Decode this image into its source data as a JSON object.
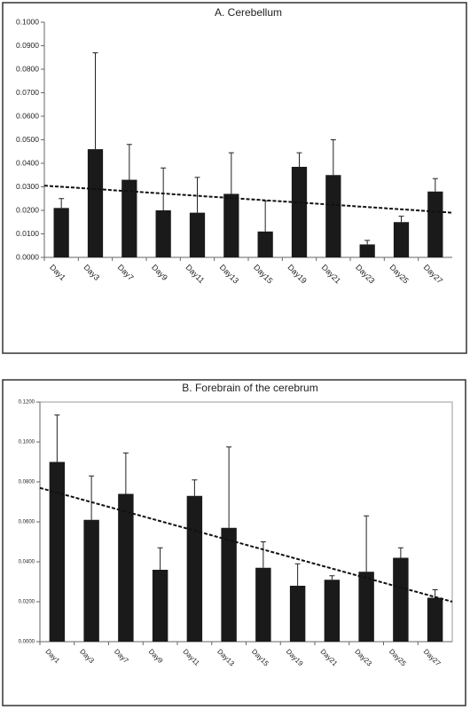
{
  "chart_data": [
    {
      "type": "bar",
      "title": "A. Cerebellum",
      "categories": [
        "Day1",
        "Day3",
        "Day7",
        "Day9",
        "Day11",
        "Day13",
        "Day15",
        "Day19",
        "Day21",
        "Day23",
        "Day25",
        "Day27"
      ],
      "values": [
        0.021,
        0.046,
        0.033,
        0.02,
        0.019,
        0.027,
        0.011,
        0.0385,
        0.035,
        0.0055,
        0.015,
        0.028
      ],
      "errors": [
        0.004,
        0.041,
        0.015,
        0.018,
        0.015,
        0.0175,
        0.013,
        0.006,
        0.015,
        0.0017,
        0.0025,
        0.0055
      ],
      "trend_line": [
        0.0305,
        0.019
      ],
      "color": "#1a1a1a",
      "ylim": [
        0,
        0.1
      ],
      "yticks": [
        {
          "value": 0,
          "label": "0.0000"
        },
        {
          "value": 0.01,
          "label": "0.0100"
        },
        {
          "value": 0.02,
          "label": "0.0200"
        },
        {
          "value": 0.03,
          "label": "0.0300"
        },
        {
          "value": 0.04,
          "label": "0.0400"
        },
        {
          "value": 0.05,
          "label": "0.0500"
        },
        {
          "value": 0.06,
          "label": "0.0600"
        },
        {
          "value": 0.07,
          "label": "0.0700"
        },
        {
          "value": 0.08,
          "label": "0.0800"
        },
        {
          "value": 0.09,
          "label": "0.0900"
        },
        {
          "value": 0.1,
          "label": "0.1000"
        }
      ]
    },
    {
      "type": "bar",
      "title": "B. Forebrain of the cerebrum",
      "categories": [
        "Day1",
        "Day3",
        "Day7",
        "Day9",
        "Day11",
        "Day13",
        "Day15",
        "Day19",
        "Day21",
        "Day23",
        "Day25",
        "Day27"
      ],
      "values": [
        0.09,
        0.061,
        0.074,
        0.036,
        0.073,
        0.057,
        0.037,
        0.028,
        0.031,
        0.035,
        0.042,
        0.022
      ],
      "errors": [
        0.0235,
        0.022,
        0.0205,
        0.011,
        0.008,
        0.0405,
        0.013,
        0.011,
        0.002,
        0.028,
        0.005,
        0.004
      ],
      "trend_line": [
        0.077,
        0.02
      ],
      "color": "#1a1a1a",
      "ylim": [
        0,
        0.12
      ],
      "yticks": [
        {
          "value": 0,
          "label": "0.0000"
        },
        {
          "value": 0.02,
          "label": "0.0200"
        },
        {
          "value": 0.04,
          "label": "0.0400"
        },
        {
          "value": 0.06,
          "label": "0.0600"
        },
        {
          "value": 0.08,
          "label": "0.0800"
        },
        {
          "value": 0.1,
          "label": "0.1000"
        },
        {
          "value": 0.12,
          "label": "0.1200"
        }
      ]
    }
  ]
}
